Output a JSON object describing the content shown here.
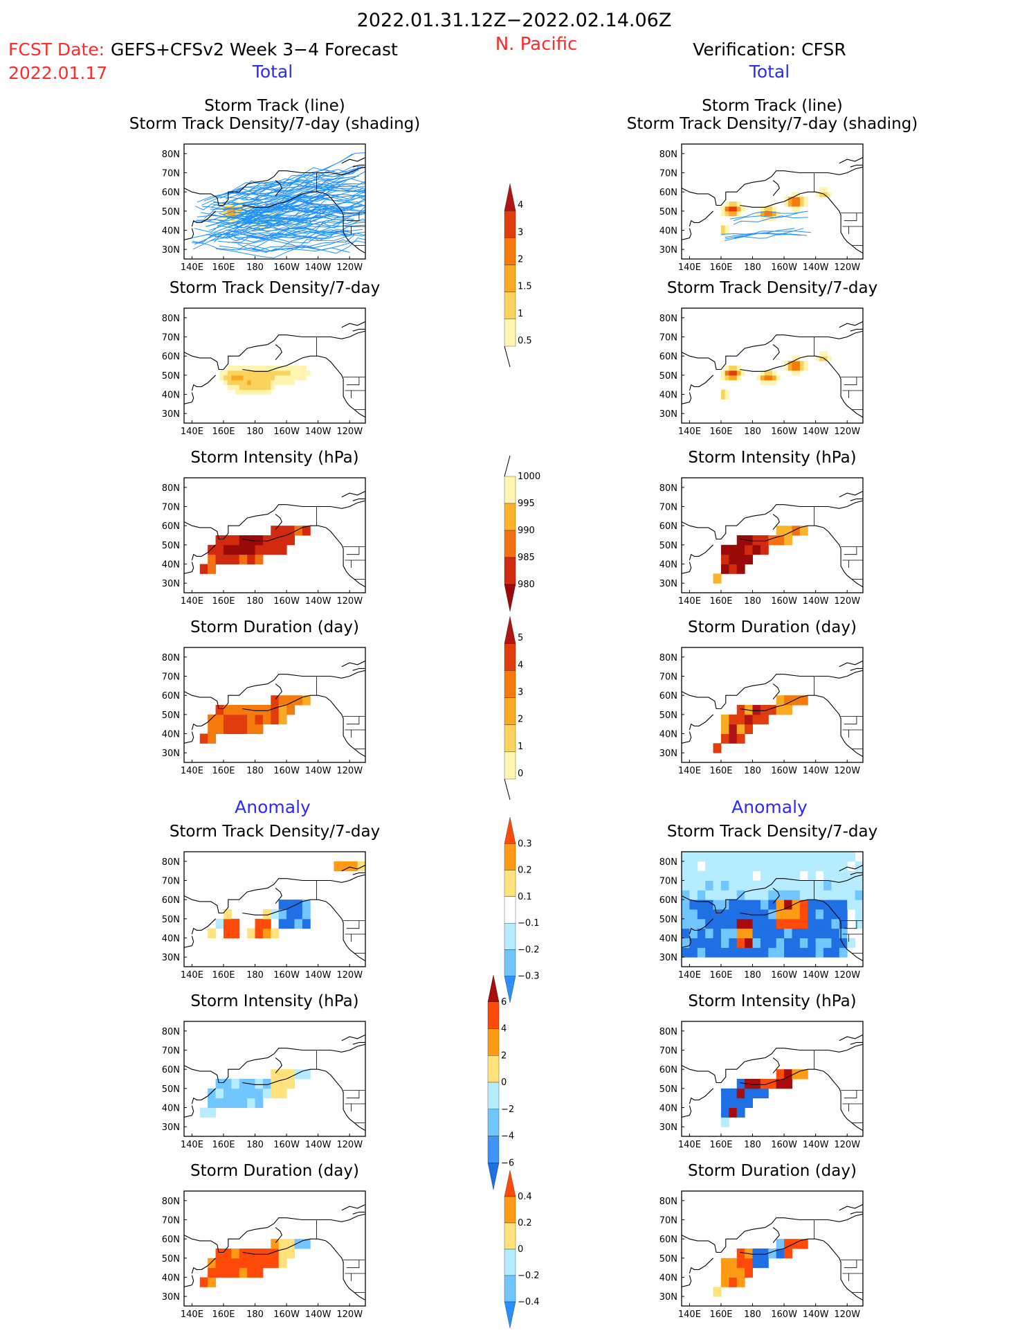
{
  "header": {
    "date_range": "2022.01.31.12Z−2022.02.14.06Z",
    "fcst_label": "FCST Date:",
    "fcst_date": "2022.01.17",
    "forecast_name": "GEFS+CFSv2 Week 3−4 Forecast",
    "region": "N. Pacific",
    "verification": "Verification: CFSR",
    "section_total": "Total",
    "section_anomaly": "Anomaly"
  },
  "colors": {
    "header_red": "#ff2a2a",
    "section_blue": "#2a2aff",
    "track_line": "#1e90ff"
  },
  "axes": {
    "lon_ticks": [
      "140E",
      "160E",
      "180",
      "160W",
      "140W",
      "120W"
    ],
    "lat_ticks": [
      "80N",
      "70N",
      "60N",
      "50N",
      "40N",
      "30N"
    ]
  },
  "panels": [
    {
      "id": "fc-track",
      "col": "left",
      "row": 0,
      "title1": "Storm Track (line)",
      "title2": "Storm Track Density/7-day (shading)",
      "pattern": "track",
      "palette": "tot",
      "tracks": true
    },
    {
      "id": "vf-track",
      "col": "right",
      "row": 0,
      "title1": "Storm Track (line)",
      "title2": "Storm Track Density/7-day (shading)",
      "pattern": "vtrack",
      "palette": "tot",
      "tracks": true
    },
    {
      "id": "fc-density",
      "col": "left",
      "row": 1,
      "title1": "",
      "title2": "Storm Track Density/7-day",
      "pattern": "fdens",
      "palette": "tot"
    },
    {
      "id": "vf-density",
      "col": "right",
      "row": 1,
      "title1": "",
      "title2": "Storm Track Density/7-day",
      "pattern": "vdens",
      "palette": "tot"
    },
    {
      "id": "fc-intensity",
      "col": "left",
      "row": 2,
      "title1": "",
      "title2": "Storm Intensity (hPa)",
      "pattern": "fint",
      "palette": "int"
    },
    {
      "id": "vf-intensity",
      "col": "right",
      "row": 2,
      "title1": "",
      "title2": "Storm Intensity (hPa)",
      "pattern": "vint",
      "palette": "int"
    },
    {
      "id": "fc-duration",
      "col": "left",
      "row": 3,
      "title1": "",
      "title2": "Storm Duration (day)",
      "pattern": "fdur",
      "palette": "tot"
    },
    {
      "id": "vf-duration",
      "col": "right",
      "row": 3,
      "title1": "",
      "title2": "Storm Duration (day)",
      "pattern": "vdur",
      "palette": "tot"
    },
    {
      "id": "fc-dens-anom",
      "col": "left",
      "row": 4,
      "title1": "",
      "title2": "Storm Track Density/7-day",
      "pattern": "fadens",
      "palette": "anom"
    },
    {
      "id": "vf-dens-anom",
      "col": "right",
      "row": 4,
      "title1": "",
      "title2": "Storm Track Density/7-day",
      "pattern": "vadens",
      "palette": "anom"
    },
    {
      "id": "fc-int-anom",
      "col": "left",
      "row": 5,
      "title1": "",
      "title2": "Storm Intensity (hPa)",
      "pattern": "faint",
      "palette": "anom"
    },
    {
      "id": "vf-int-anom",
      "col": "right",
      "row": 5,
      "title1": "",
      "title2": "Storm Intensity (hPa)",
      "pattern": "vaint",
      "palette": "anom"
    },
    {
      "id": "fc-dur-anom",
      "col": "left",
      "row": 6,
      "title1": "",
      "title2": "Storm Duration (day)",
      "pattern": "fadur",
      "palette": "anom"
    },
    {
      "id": "vf-dur-anom",
      "col": "right",
      "row": 6,
      "title1": "",
      "title2": "Storm Duration (day)",
      "pattern": "vadur",
      "palette": "anom"
    }
  ],
  "colorbars": [
    {
      "id": "cb-density",
      "labels": [
        "0.5",
        "1",
        "1.5",
        "2",
        "3",
        "4"
      ],
      "colors": [
        "#fff5b0",
        "#fbd35c",
        "#f9aa22",
        "#f47a0c",
        "#e03c0c",
        "#b11414"
      ],
      "ends": "top"
    },
    {
      "id": "cb-intensity",
      "labels": [
        "1000",
        "995",
        "990",
        "985",
        "980"
      ],
      "colors": [
        "#fff5b0",
        "#fbb429",
        "#f47014",
        "#d12a0f",
        "#9a0a08"
      ],
      "ends": "bottom"
    },
    {
      "id": "cb-duration",
      "labels": [
        "0",
        "1",
        "2",
        "3",
        "4",
        "5"
      ],
      "colors": [
        "#fff5b0",
        "#fbd35c",
        "#f9aa22",
        "#f47a0c",
        "#e03c0c",
        "#b11414"
      ],
      "ends": "top"
    },
    {
      "id": "cb-dens-anom",
      "labels": [
        "0.3",
        "0.2",
        "0.1",
        "−0.1",
        "−0.2",
        "−0.3"
      ],
      "colors": [
        "#ff4a0a",
        "#ff9a14",
        "#ffe27a",
        "#ffffff",
        "#b6ecff",
        "#72c6ff",
        "#2a8fff"
      ],
      "ends": "both"
    },
    {
      "id": "cb-int-anom",
      "labels": [
        "6",
        "4",
        "2",
        "0",
        "−2",
        "−4",
        "−6"
      ],
      "colors": [
        "#a80c0c",
        "#ff4a0a",
        "#ff9a14",
        "#ffe27a",
        "#b6ecff",
        "#72c6ff",
        "#3f95f5",
        "#1f6fe5"
      ],
      "ends": "both"
    },
    {
      "id": "cb-dur-anom",
      "labels": [
        "0.4",
        "0.2",
        "0",
        "−0.2",
        "−0.4"
      ],
      "colors": [
        "#ff4a0a",
        "#ff9a14",
        "#ffe27a",
        "#b6ecff",
        "#72c6ff",
        "#2a8fff"
      ],
      "ends": "both"
    }
  ]
}
